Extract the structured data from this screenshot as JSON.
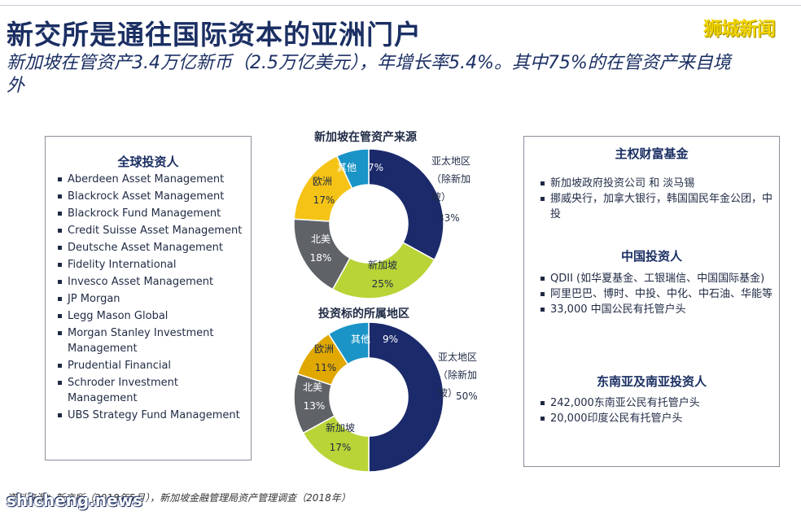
{
  "header": {
    "title": "新交所是通往国际资本的亚洲门户",
    "subtitle": "新加坡在管资产3.4万亿新币（2.5万亿美元），年增长率5.4%。其中75%的在管资产来自境外",
    "watermark": "狮城新闻"
  },
  "left_panel": {
    "heading": "全球投资人",
    "items": [
      "Aberdeen Asset Management",
      "Blackrock Asset Management",
      "Blackrock Fund Management",
      "Credit Suisse Asset Management",
      "Deutsche Asset Management",
      "Fidelity International",
      "Invesco Asset Management",
      "JP Morgan",
      "Legg Mason Global",
      "Morgan Stanley Investment Management",
      "Prudential Financial",
      "Schroder Investment Management",
      "UBS Strategy Fund Management"
    ]
  },
  "right_panel": {
    "sections": [
      {
        "heading": "主权财富基金",
        "items": [
          "新加坡政府投资公司 和 淡马锡",
          "挪威央行，加拿大银行，韩国国民年金公团，中投"
        ]
      },
      {
        "heading": "中国投资人",
        "items": [
          "QDII (如华夏基金、工银瑞信、中国国际基金)",
          "阿里巴巴、博时、中投、中化、中石油、华能等",
          "33,000 中国公民有托管户头"
        ]
      },
      {
        "heading": "东南亚及南亚投资人",
        "items": [
          "242,000东南亚公民有托管户头",
          "20,000印度公民有托管户头"
        ]
      }
    ]
  },
  "footer": {
    "source": "资料来源：新交所（2018年5月），新加坡金融管理局资产管理调查（2018年）",
    "watermark": "shicheng.news"
  },
  "chart_data": [
    {
      "type": "pie",
      "title": "新加坡在管资产来源",
      "slices": [
        {
          "label": "亚太地区（除新加坡）",
          "value": 33,
          "text": "33%",
          "color": "#1b2a6b"
        },
        {
          "label": "新加坡",
          "value": 25,
          "text": "25%",
          "color": "#b9d437"
        },
        {
          "label": "北美",
          "value": 18,
          "text": "18%",
          "color": "#5f6368"
        },
        {
          "label": "欧洲",
          "value": 17,
          "text": "17%",
          "color": "#f5c316"
        },
        {
          "label": "其他",
          "value": 7,
          "text": "7%",
          "color": "#1a94c6"
        }
      ]
    },
    {
      "type": "pie",
      "title": "投资标的所属地区",
      "slices": [
        {
          "label": "亚太地区（除新加坡）",
          "value": 50,
          "text": "50%",
          "color": "#1b2a6b"
        },
        {
          "label": "新加坡",
          "value": 17,
          "text": "17%",
          "color": "#b9d437"
        },
        {
          "label": "北美",
          "value": 13,
          "text": "13%",
          "color": "#5f6368"
        },
        {
          "label": "欧洲",
          "value": 11,
          "text": "11%",
          "color": "#e0a800"
        },
        {
          "label": "其他",
          "value": 9,
          "text": "9%",
          "color": "#1a94c6"
        }
      ]
    }
  ]
}
